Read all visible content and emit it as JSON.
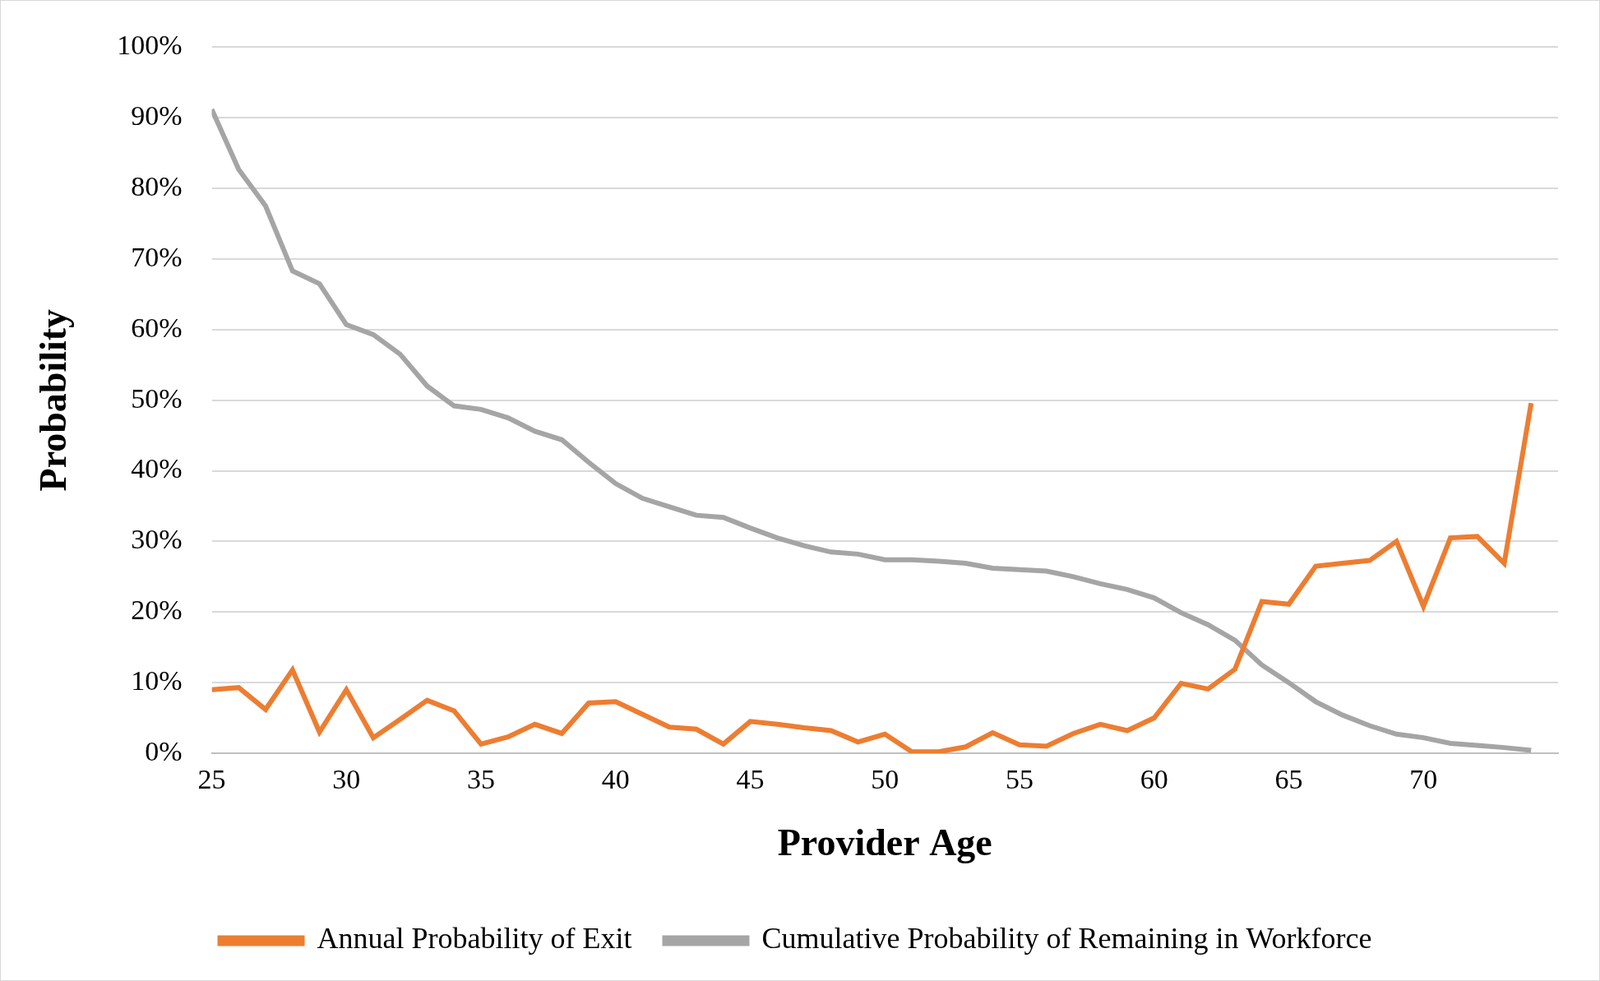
{
  "chart_data": {
    "type": "line",
    "x_label": "Provider Age",
    "y_label": "Probability",
    "x": [
      25,
      26,
      27,
      28,
      29,
      30,
      31,
      32,
      33,
      34,
      35,
      36,
      37,
      38,
      39,
      40,
      41,
      42,
      43,
      44,
      45,
      46,
      47,
      48,
      49,
      50,
      51,
      52,
      53,
      54,
      55,
      56,
      57,
      58,
      59,
      60,
      61,
      62,
      63,
      64,
      65,
      66,
      67,
      68,
      69,
      70,
      71,
      72,
      73,
      74
    ],
    "series": [
      {
        "name": "Annual Probability of Exit",
        "color": "#ed7d31",
        "values": [
          9,
          9.3,
          6.2,
          11.8,
          3,
          9,
          2.2,
          4.8,
          7.5,
          6,
          1.3,
          2.3,
          4.1,
          2.8,
          7.1,
          7.3,
          5.5,
          3.7,
          3.4,
          1.3,
          4.5,
          4.1,
          3.6,
          3.2,
          1.6,
          2.7,
          0.2,
          0.2,
          0.9,
          2.9,
          1.2,
          1,
          2.8,
          4.1,
          3.2,
          5,
          9.9,
          9.1,
          11.9,
          21.5,
          21.1,
          26.5,
          26.9,
          27.3,
          30,
          20.8,
          30.5,
          30.7,
          26.9,
          49.6
        ]
      },
      {
        "name": "Cumulative Probability of Remaining in Workforce",
        "color": "#a5a5a5",
        "values": [
          91.2,
          82.7,
          77.5,
          68.3,
          66.5,
          60.7,
          59.3,
          56.5,
          52,
          49.2,
          48.7,
          47.5,
          45.6,
          44.4,
          41.2,
          38.2,
          36.1,
          34.9,
          33.7,
          33.4,
          31.9,
          30.5,
          29.4,
          28.5,
          28.2,
          27.4,
          27.4,
          27.2,
          26.9,
          26.2,
          26,
          25.8,
          25,
          24,
          23.2,
          22,
          19.9,
          18.2,
          16,
          12.5,
          10,
          7.3,
          5.4,
          3.9,
          2.7,
          2.2,
          1.4,
          1.1,
          0.8,
          0.4
        ]
      }
    ],
    "xlim": [
      25,
      75
    ],
    "xticks": [
      25,
      30,
      35,
      40,
      45,
      50,
      55,
      60,
      65,
      70
    ],
    "ylim": [
      0,
      100
    ],
    "yticks": [
      {
        "value": 0,
        "label": "0%"
      },
      {
        "value": 10,
        "label": "10%"
      },
      {
        "value": 20,
        "label": "20%"
      },
      {
        "value": 30,
        "label": "30%"
      },
      {
        "value": 40,
        "label": "40%"
      },
      {
        "value": 50,
        "label": "50%"
      },
      {
        "value": 60,
        "label": "60%"
      },
      {
        "value": 70,
        "label": "70%"
      },
      {
        "value": 80,
        "label": "80%"
      },
      {
        "value": 90,
        "label": "90%"
      },
      {
        "value": 100,
        "label": "100%"
      }
    ],
    "grid": true,
    "legend": "bottom"
  }
}
